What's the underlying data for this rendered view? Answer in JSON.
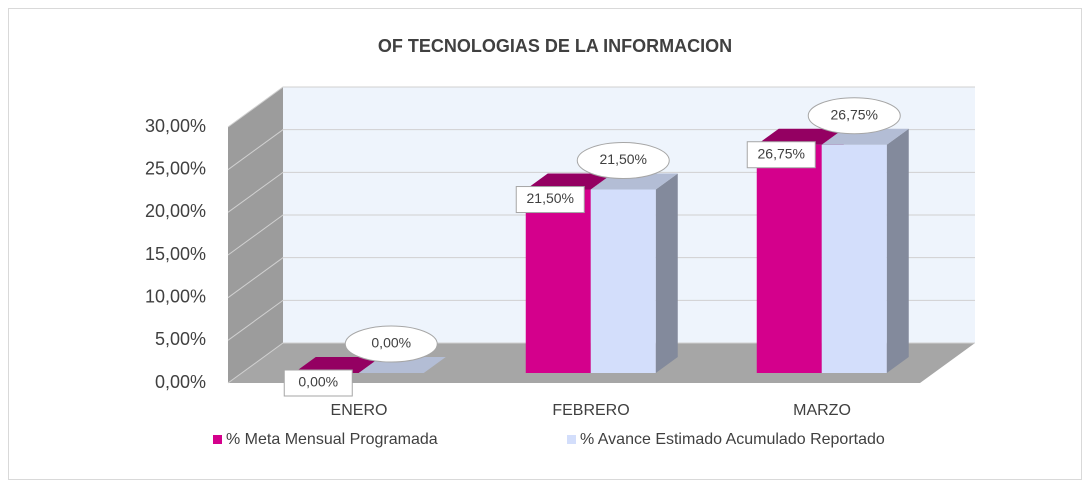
{
  "chart_data": {
    "type": "bar3d",
    "title": "OF TECNOLOGIAS  DE LA INFORMACION",
    "categories": [
      "ENERO",
      "FEBRERO",
      "MARZO"
    ],
    "series": [
      {
        "name": "% Meta Mensual Programada",
        "color": "#d4008c",
        "values": [
          0,
          21.5,
          26.75
        ],
        "value_labels": [
          "0,00%",
          "21,50%",
          "26,75%"
        ]
      },
      {
        "name": "% Avance Estimado Acumulado Reportado",
        "color": "#d3defb",
        "values": [
          0,
          21.5,
          26.75
        ],
        "value_labels": [
          "0,00%",
          "21,50%",
          "26,75%"
        ]
      }
    ],
    "ylim": [
      0,
      30
    ],
    "yticks": [
      {
        "value": 0,
        "label": "0,00%"
      },
      {
        "value": 5,
        "label": "5,00%"
      },
      {
        "value": 10,
        "label": "10,00%"
      },
      {
        "value": 15,
        "label": "15,00%"
      },
      {
        "value": 20,
        "label": "20,00%"
      },
      {
        "value": 25,
        "label": "25,00%"
      },
      {
        "value": 30,
        "label": "30,00%"
      }
    ],
    "grid": true,
    "legend": "bottom"
  }
}
